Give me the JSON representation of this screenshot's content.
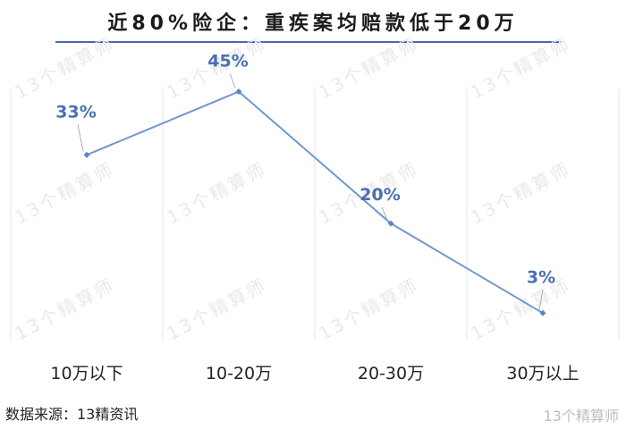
{
  "title": "近80%险企：重疾案均赔款低于20万",
  "source": "数据来源：13精资讯",
  "brand": "13个精算师",
  "watermark": "13个精算师",
  "colors": {
    "line": "#6f98cc",
    "point": "#5b86c2",
    "label": "#4a6fb3",
    "rule": "#4a66b0"
  },
  "chart_data": {
    "type": "line",
    "title": "近80%险企：重疾案均赔款低于20万",
    "categories": [
      "10万以下",
      "10-20万",
      "20-30万",
      "30万以上"
    ],
    "values": [
      33,
      45,
      20,
      3
    ],
    "value_labels": [
      "33%",
      "45%",
      "20%",
      "3%"
    ],
    "ylim": [
      0,
      50
    ],
    "grid": "vertical",
    "legend": "none"
  }
}
